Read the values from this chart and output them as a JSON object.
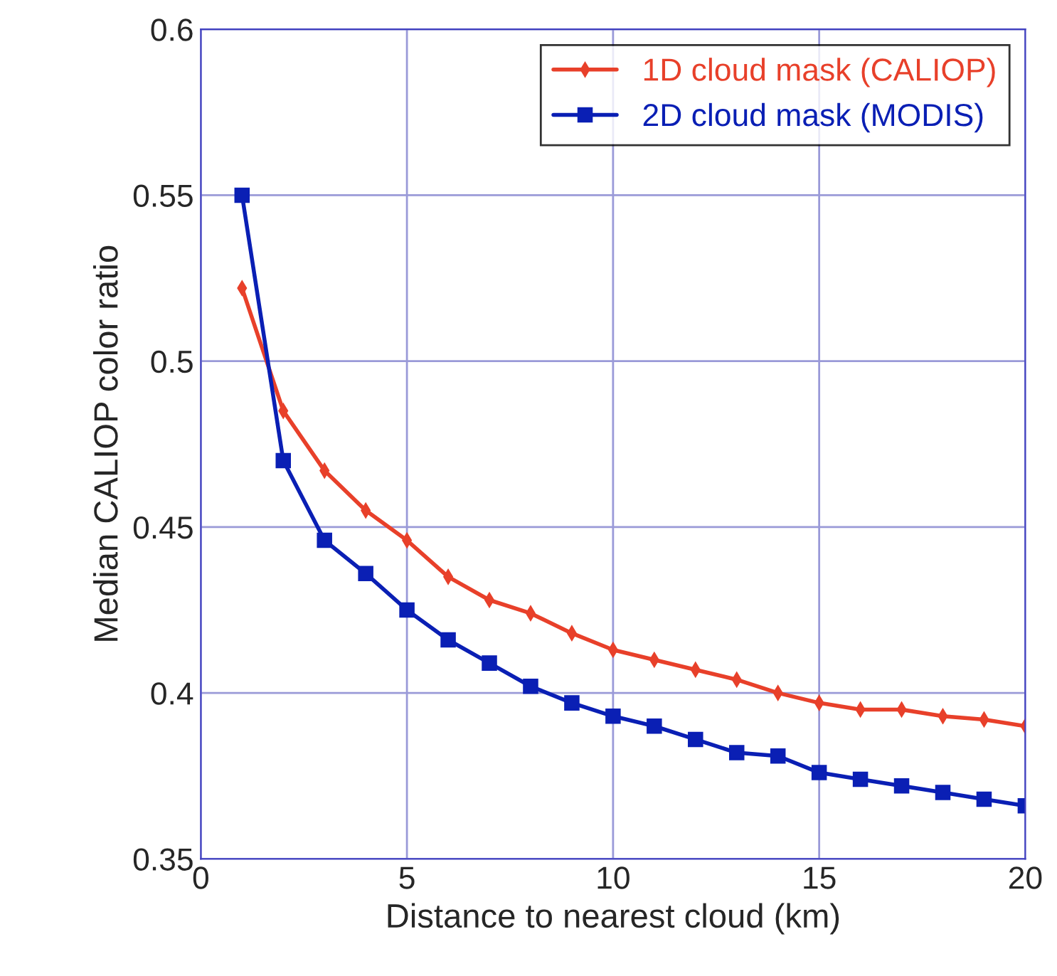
{
  "chart_data": {
    "type": "line",
    "xlabel": "Distance to nearest cloud (km)",
    "ylabel": "Median CALIOP color ratio",
    "x": [
      1,
      2,
      3,
      4,
      5,
      6,
      7,
      8,
      9,
      10,
      11,
      12,
      13,
      14,
      15,
      16,
      17,
      18,
      19,
      20
    ],
    "series": [
      {
        "name": "1D cloud mask (CALIOP)",
        "color": "#e8402a",
        "marker": "diamond",
        "values": [
          0.522,
          0.485,
          0.467,
          0.455,
          0.446,
          0.435,
          0.428,
          0.424,
          0.418,
          0.413,
          0.41,
          0.407,
          0.404,
          0.4,
          0.397,
          0.395,
          0.395,
          0.393,
          0.392,
          0.39
        ]
      },
      {
        "name": "2D cloud mask (MODIS)",
        "color": "#0a1fb4",
        "marker": "square",
        "values": [
          0.55,
          0.47,
          0.446,
          0.436,
          0.425,
          0.416,
          0.409,
          0.402,
          0.397,
          0.393,
          0.39,
          0.386,
          0.382,
          0.381,
          0.376,
          0.374,
          0.372,
          0.37,
          0.368,
          0.366
        ]
      }
    ],
    "xlim": [
      0,
      20
    ],
    "xticks": [
      0,
      5,
      10,
      15,
      20
    ],
    "ylim": [
      0.35,
      0.6
    ],
    "yticks": [
      0.35,
      0.4,
      0.45,
      0.5,
      0.55,
      0.6
    ],
    "grid": true,
    "legend": "top right",
    "line_style": "solid"
  }
}
